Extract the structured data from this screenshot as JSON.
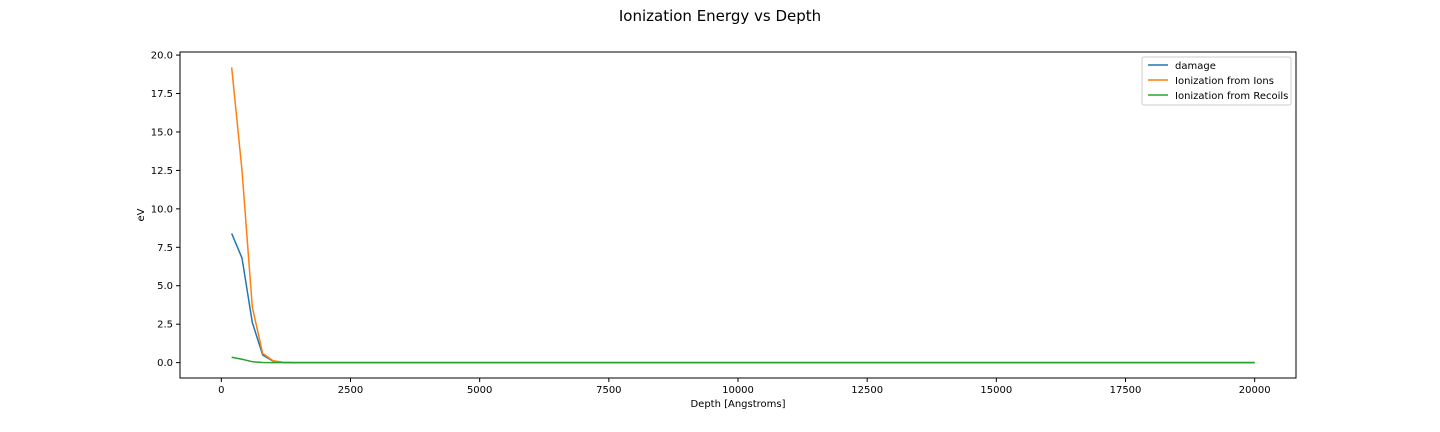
{
  "chart_data": {
    "type": "line",
    "title": "Ionization Energy vs Depth",
    "xlabel": "Depth [Angstroms]",
    "ylabel": "eV",
    "xlim": [
      -800,
      20800
    ],
    "ylim": [
      -1.0,
      20.2
    ],
    "xticks": [
      0,
      2500,
      5000,
      7500,
      10000,
      12500,
      15000,
      17500,
      20000
    ],
    "xtick_labels": [
      "0",
      "2500",
      "5000",
      "7500",
      "10000",
      "12500",
      "15000",
      "17500",
      "20000"
    ],
    "yticks": [
      0.0,
      2.5,
      5.0,
      7.5,
      10.0,
      12.5,
      15.0,
      17.5,
      20.0
    ],
    "ytick_labels": [
      "0.0",
      "2.5",
      "5.0",
      "7.5",
      "10.0",
      "12.5",
      "15.0",
      "17.5",
      "20.0"
    ],
    "grid": false,
    "legend_position": "top-right",
    "x": [
      200,
      400,
      600,
      800,
      1000,
      1200,
      1400,
      2000,
      5000,
      10000,
      15000,
      20000
    ],
    "series": [
      {
        "name": "damage",
        "color": "#1f77b4",
        "values": [
          8.4,
          6.8,
          2.6,
          0.5,
          0.1,
          0.02,
          0.0,
          0.0,
          0.0,
          0.0,
          0.0,
          0.0
        ]
      },
      {
        "name": "Ionization from Ions",
        "color": "#ff7f0e",
        "values": [
          19.2,
          12.5,
          3.6,
          0.6,
          0.12,
          0.02,
          0.0,
          0.0,
          0.0,
          0.0,
          0.0,
          0.0
        ]
      },
      {
        "name": "Ionization from Recoils",
        "color": "#2ca02c",
        "values": [
          0.35,
          0.22,
          0.06,
          0.01,
          0.0,
          0.0,
          0.0,
          0.0,
          0.0,
          0.0,
          0.0,
          0.0
        ]
      }
    ]
  }
}
